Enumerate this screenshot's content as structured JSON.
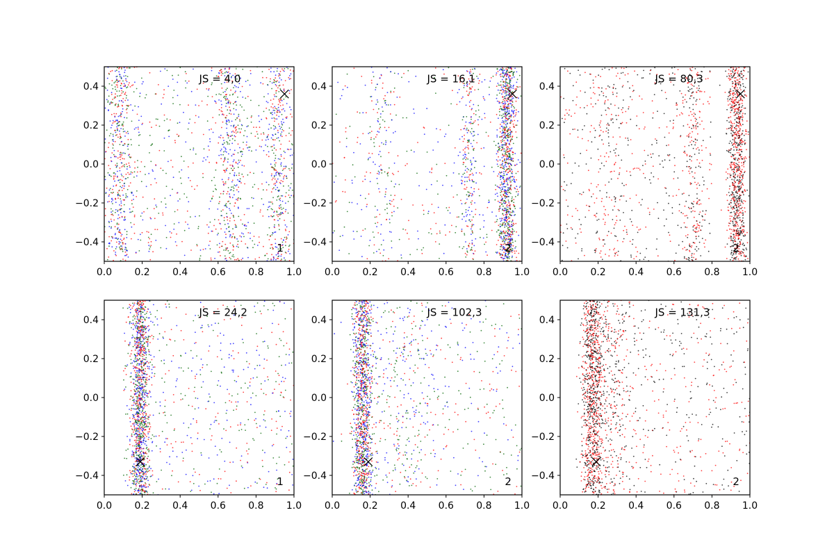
{
  "chart_data": [
    {
      "type": "scatter",
      "js_label": "JS = 4,0",
      "corner_label": "1",
      "x_range": [
        0.0,
        1.0
      ],
      "y_range": [
        -0.5,
        0.5
      ],
      "x_ticks": [
        "0.0",
        "0.2",
        "0.4",
        "0.6",
        "0.8",
        "1.0"
      ],
      "y_ticks": [
        "-0.4",
        "-0.2",
        "0.0",
        "0.2",
        "0.4"
      ],
      "marker": {
        "x": 0.95,
        "y": 0.36
      },
      "series_colors": [
        "#0000ff",
        "#ff0000",
        "#006400"
      ],
      "clusters": [
        {
          "center_x": 0.08,
          "spread_x": 0.04,
          "weight": 0.25
        },
        {
          "center_x": 0.66,
          "spread_x": 0.05,
          "weight": 0.2
        },
        {
          "center_x": 0.92,
          "spread_x": 0.04,
          "weight": 0.2
        },
        {
          "center_x": 0.5,
          "spread_x": 0.5,
          "weight": 0.35,
          "uniform": true
        }
      ]
    },
    {
      "type": "scatter",
      "js_label": "JS = 16,1",
      "corner_label": "2",
      "x_range": [
        0.0,
        1.0
      ],
      "y_range": [
        -0.5,
        0.5
      ],
      "x_ticks": [
        "0.0",
        "0.2",
        "0.4",
        "0.6",
        "0.8",
        "1.0"
      ],
      "y_ticks": [
        "-0.4",
        "-0.2",
        "0.0",
        "0.2",
        "0.4"
      ],
      "marker": {
        "x": 0.95,
        "y": 0.36
      },
      "series_colors": [
        "#0000ff",
        "#ff0000",
        "#006400"
      ],
      "clusters": [
        {
          "center_x": 0.92,
          "spread_x": 0.025,
          "weight": 0.6
        },
        {
          "center_x": 0.72,
          "spread_x": 0.025,
          "weight": 0.12
        },
        {
          "center_x": 0.25,
          "spread_x": 0.04,
          "weight": 0.08
        },
        {
          "center_x": 0.5,
          "spread_x": 0.5,
          "weight": 0.2,
          "uniform": true
        }
      ]
    },
    {
      "type": "scatter",
      "js_label": "JS = 80,3",
      "corner_label": "2",
      "x_range": [
        0.0,
        1.0
      ],
      "y_range": [
        -0.5,
        0.5
      ],
      "x_ticks": [
        "0.0",
        "0.2",
        "0.4",
        "0.6",
        "0.8",
        "1.0"
      ],
      "y_ticks": [
        "-0.4",
        "-0.2",
        "0.0",
        "0.2",
        "0.4"
      ],
      "marker": {
        "x": 0.95,
        "y": 0.36
      },
      "series_colors": [
        "#000000",
        "#ff0000"
      ],
      "clusters": [
        {
          "center_x": 0.93,
          "spread_x": 0.025,
          "weight": 0.55
        },
        {
          "center_x": 0.7,
          "spread_x": 0.03,
          "weight": 0.12
        },
        {
          "center_x": 0.25,
          "spread_x": 0.06,
          "weight": 0.08
        },
        {
          "center_x": 0.4,
          "spread_x": 0.4,
          "weight": 0.25,
          "uniform": true
        }
      ]
    },
    {
      "type": "scatter",
      "js_label": "JS = 24,2",
      "corner_label": "1",
      "x_range": [
        0.0,
        1.0
      ],
      "y_range": [
        -0.5,
        0.5
      ],
      "x_ticks": [
        "0.0",
        "0.2",
        "0.4",
        "0.6",
        "0.8",
        "1.0"
      ],
      "y_ticks": [
        "-0.4",
        "-0.2",
        "0.0",
        "0.2",
        "0.4"
      ],
      "marker": {
        "x": 0.19,
        "y": -0.33
      },
      "series_colors": [
        "#0000ff",
        "#ff0000",
        "#006400"
      ],
      "clusters": [
        {
          "center_x": 0.19,
          "spread_x": 0.025,
          "weight": 0.7
        },
        {
          "center_x": 0.55,
          "spread_x": 0.45,
          "weight": 0.3,
          "uniform": true
        }
      ]
    },
    {
      "type": "scatter",
      "js_label": "JS = 102,3",
      "corner_label": "2",
      "x_range": [
        0.0,
        1.0
      ],
      "y_range": [
        -0.5,
        0.5
      ],
      "x_ticks": [
        "0.0",
        "0.2",
        "0.4",
        "0.6",
        "0.8",
        "1.0"
      ],
      "y_ticks": [
        "-0.4",
        "-0.2",
        "0.0",
        "0.2",
        "0.4"
      ],
      "marker": {
        "x": 0.19,
        "y": -0.33
      },
      "series_colors": [
        "#0000ff",
        "#ff0000",
        "#006400"
      ],
      "clusters": [
        {
          "center_x": 0.16,
          "spread_x": 0.025,
          "weight": 0.65
        },
        {
          "center_x": 0.35,
          "spread_x": 0.12,
          "weight": 0.15
        },
        {
          "center_x": 0.55,
          "spread_x": 0.45,
          "weight": 0.2,
          "uniform": true
        }
      ]
    },
    {
      "type": "scatter",
      "js_label": "JS = 131,3",
      "corner_label": "2",
      "x_range": [
        0.0,
        1.0
      ],
      "y_range": [
        -0.5,
        0.5
      ],
      "x_ticks": [
        "0.0",
        "0.2",
        "0.4",
        "0.6",
        "0.8",
        "1.0"
      ],
      "y_ticks": [
        "-0.4",
        "-0.2",
        "0.0",
        "0.2",
        "0.4"
      ],
      "marker": {
        "x": 0.19,
        "y": -0.33
      },
      "series_colors": [
        "#000000",
        "#ff0000"
      ],
      "clusters": [
        {
          "center_x": 0.17,
          "spread_x": 0.03,
          "weight": 0.6
        },
        {
          "center_x": 0.28,
          "spread_x": 0.05,
          "weight": 0.15
        },
        {
          "center_x": 0.6,
          "spread_x": 0.4,
          "weight": 0.25,
          "uniform": true
        }
      ]
    }
  ]
}
